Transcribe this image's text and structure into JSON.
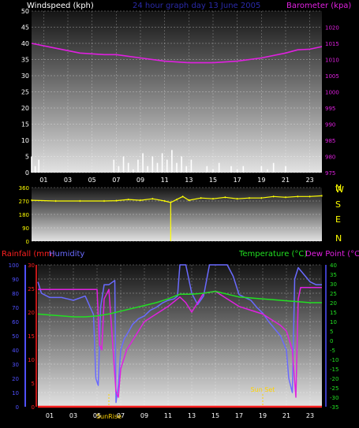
{
  "header": {
    "top_left": "Windspeed (kph)",
    "top_center": "24 hour graph day 13 June 2005",
    "top_right": "Barometer (kpa)",
    "rain_label": "Rainfall (mm)",
    "humidity_label": "Humidity",
    "temp_label": "Temperature (°C)",
    "dewpoint_label": "Dew Point (°C)"
  },
  "colors": {
    "wind": "#ffffff",
    "windspeed_label": "#ffffff",
    "barometer": "#e020e0",
    "gust_green": "#00cc00",
    "direction": "#ffff00",
    "rain": "#ff2020",
    "humidity": "#6a6aff",
    "temperature": "#22e022",
    "dewpoint": "#e020e0",
    "axis_left_bottom": "#5050ff",
    "axis_rain": "#ff2020",
    "grid": "#ffffff"
  },
  "chart_data": [
    {
      "type": "line",
      "id": "wind_baro",
      "title": "24 hour graph day 13 June 2005",
      "y_left": {
        "label": "Windspeed (kph)",
        "ticks": [
          "0",
          "5",
          "10",
          "15",
          "20",
          "25",
          "30",
          "35",
          "40",
          "45",
          "50"
        ],
        "ylim": [
          0,
          50
        ]
      },
      "y_right": {
        "label": "Barometer (kpa)",
        "ticks": [
          "975",
          "980",
          "985",
          "990",
          "995",
          "1000",
          "1005",
          "1010",
          "1015",
          "1020"
        ],
        "ylim": [
          975,
          1025
        ]
      },
      "x_ticks": [
        "01",
        "03",
        "05",
        "07",
        "09",
        "11",
        "13",
        "15",
        "17",
        "19",
        "21",
        "23"
      ],
      "series": [
        {
          "name": "Barometer",
          "axis": "right",
          "x": [
            0,
            2,
            4,
            6,
            7,
            9,
            11,
            13,
            15,
            17,
            19,
            21,
            22,
            23,
            24
          ],
          "values": [
            1015,
            1013.5,
            1012,
            1011.5,
            1011.5,
            1010.5,
            1009.5,
            1009,
            1009,
            1009.5,
            1010.5,
            1012,
            1013,
            1013.2,
            1014
          ]
        },
        {
          "name": "Windspeed",
          "axis": "left",
          "x": [
            0,
            0.3,
            0.6,
            1,
            6.8,
            7.2,
            7.6,
            8,
            8.4,
            8.8,
            9.2,
            9.6,
            10,
            10.4,
            10.8,
            11.2,
            11.6,
            12,
            12.4,
            12.8,
            13.2,
            14,
            14.5,
            15,
            15.5,
            16,
            16.5,
            17,
            17.5,
            18,
            19,
            19.5,
            20,
            20.5,
            21
          ],
          "values": [
            5,
            2,
            4,
            0,
            4,
            2,
            5,
            3,
            1,
            4,
            6,
            2,
            5,
            3,
            6,
            4,
            7,
            3,
            5,
            2,
            4,
            0,
            2,
            1,
            3,
            0,
            2,
            1,
            2,
            0,
            2,
            1,
            3,
            0,
            2
          ]
        }
      ]
    },
    {
      "type": "scatter",
      "id": "wind_dir",
      "y_left": {
        "ticks": [
          "0",
          "90",
          "180",
          "270",
          "360"
        ],
        "ylim": [
          0,
          360
        ]
      },
      "y_right": {
        "ticks": [
          "N",
          "E",
          "S",
          "W",
          "N"
        ]
      },
      "series": [
        {
          "name": "Wind direction",
          "x": [
            0,
            2,
            4,
            6,
            7,
            8,
            9,
            10,
            11,
            11.5,
            12,
            12.5,
            13,
            14,
            15,
            16,
            17,
            18,
            19,
            20,
            21,
            22,
            23,
            24
          ],
          "values": [
            275,
            270,
            270,
            270,
            272,
            280,
            275,
            285,
            270,
            260,
            280,
            300,
            275,
            290,
            285,
            295,
            285,
            290,
            290,
            300,
            295,
            300,
            300,
            305
          ]
        }
      ]
    },
    {
      "type": "line",
      "id": "temp_hum",
      "y_left_rain": {
        "label": "Rainfall (mm)",
        "ticks": [
          "0",
          "5",
          "10",
          "15",
          "20",
          "25",
          "30"
        ],
        "ylim": [
          0,
          30
        ]
      },
      "y_left_hum": {
        "label": "Humidity",
        "ticks": [
          "0",
          "10",
          "20",
          "30",
          "40",
          "50",
          "60",
          "70",
          "80",
          "90",
          "100"
        ],
        "ylim": [
          0,
          100
        ]
      },
      "y_right": {
        "label": "Temperature (°C)",
        "ticks": [
          "-35",
          "-30",
          "-25",
          "-20",
          "-15",
          "-10",
          "-5",
          "0",
          "5",
          "10",
          "15",
          "20",
          "25",
          "30",
          "35",
          "40"
        ],
        "ylim": [
          -35,
          40
        ]
      },
      "x_ticks": [
        "01",
        "03",
        "05",
        "07",
        "09",
        "11",
        "13",
        "15",
        "17",
        "19",
        "21",
        "23"
      ],
      "annotations": [
        {
          "label": "SunRise",
          "x": 6.0
        },
        {
          "label": "Sun Set",
          "x": 19.0
        }
      ],
      "series": [
        {
          "name": "Rainfall",
          "axis": "rain",
          "x": [
            0,
            24
          ],
          "values": [
            0,
            0
          ]
        },
        {
          "name": "Humidity",
          "axis": "hum",
          "x": [
            0,
            0.3,
            1,
            2,
            2.5,
            3,
            4,
            4.7,
            4.9,
            5.1,
            5.3,
            5.6,
            6,
            6.5,
            6.6,
            6.8,
            7,
            7.3,
            7.6,
            8,
            8.5,
            9,
            9.5,
            10,
            10.5,
            11,
            11.5,
            11.8,
            12,
            12.2,
            12.5,
            13,
            13.5,
            14,
            14.5,
            15,
            16,
            16.5,
            17,
            17.5,
            18,
            18.5,
            19,
            19.5,
            20,
            20.5,
            21,
            21.2,
            21.5,
            21.7,
            22,
            23,
            23.5,
            24
          ],
          "values": [
            88,
            80,
            77,
            77,
            76,
            75,
            78,
            65,
            20,
            15,
            70,
            86,
            86,
            89,
            3,
            15,
            40,
            48,
            52,
            58,
            62,
            64,
            68,
            70,
            73,
            75,
            76,
            78,
            100,
            100,
            100,
            80,
            72,
            78,
            100,
            100,
            100,
            92,
            79,
            77,
            75,
            70,
            66,
            60,
            55,
            50,
            40,
            20,
            10,
            90,
            98,
            88,
            86,
            86
          ]
        },
        {
          "name": "Temperature",
          "axis": "temp",
          "x": [
            0,
            1,
            2,
            3,
            4,
            5,
            6,
            7,
            8,
            9,
            10,
            11,
            12,
            13,
            14,
            15,
            16,
            17,
            18,
            19,
            20,
            21,
            22,
            23,
            24
          ],
          "values": [
            14,
            13.5,
            13,
            12.5,
            12.5,
            13,
            14,
            15.5,
            17,
            18.5,
            20,
            22,
            24.5,
            24.5,
            25,
            26,
            24.5,
            23,
            22.5,
            22,
            21.5,
            21,
            20.5,
            20,
            20
          ]
        },
        {
          "name": "Dew Point",
          "axis": "temp",
          "x": [
            0,
            5,
            5.2,
            5.4,
            5.6,
            6,
            6.6,
            6.8,
            7,
            7.5,
            8,
            8.5,
            9,
            10,
            11,
            12,
            12.5,
            13,
            14,
            15,
            16,
            17,
            18,
            19,
            19.5,
            20,
            20.5,
            21,
            21.5,
            21.8,
            22,
            22.2,
            23,
            24
          ],
          "values": [
            27,
            27,
            -2,
            -5,
            22,
            27,
            -27,
            -30,
            -15,
            -5,
            0,
            5,
            10,
            14,
            18,
            23,
            20,
            15,
            25,
            26,
            22,
            18,
            16,
            14,
            12,
            10,
            8,
            5,
            -5,
            -30,
            22,
            28,
            28,
            28
          ]
        }
      ]
    }
  ]
}
